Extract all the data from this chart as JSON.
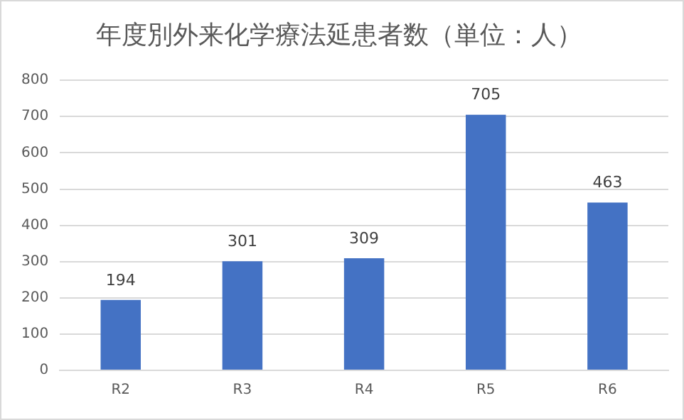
{
  "chart_data": {
    "type": "bar",
    "title": "年度別外来化学療法延患者数（単位：人）",
    "categories": [
      "R2",
      "R3",
      "R4",
      "R5",
      "R6"
    ],
    "values": [
      194,
      301,
      309,
      705,
      463
    ],
    "color": "#4472c4",
    "ylim": [
      0,
      800
    ],
    "yticks": [
      0,
      100,
      200,
      300,
      400,
      500,
      600,
      700,
      800
    ],
    "grid": "y",
    "data_labels": true,
    "legend": false
  }
}
